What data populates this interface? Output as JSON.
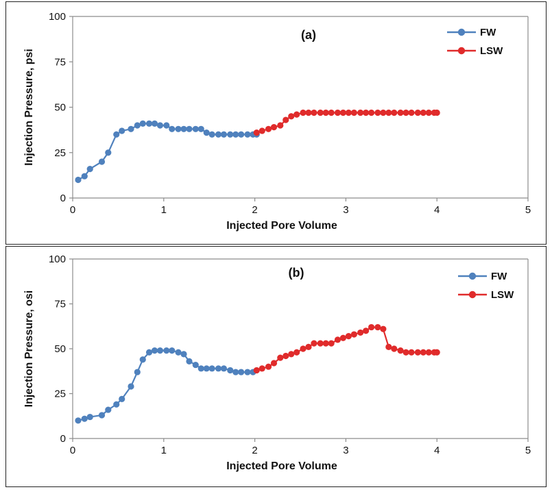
{
  "colors": {
    "fw": "#4f81bd",
    "lsw": "#e02b2b",
    "axis": "#8c8c8c",
    "frame": "#222222"
  },
  "chart_data": [
    {
      "type": "line",
      "panel_label": "(a)",
      "xlabel": "Injected Pore Volume",
      "ylabel": "Injection Pressure, psi",
      "xlim": [
        0,
        5
      ],
      "ylim": [
        0,
        100
      ],
      "xticks": [
        0,
        1,
        2,
        3,
        4,
        5
      ],
      "yticks": [
        0,
        25,
        50,
        75,
        100
      ],
      "grid": false,
      "legend_position": "top-right",
      "series": [
        {
          "name": "FW",
          "color": "#4f81bd",
          "x": [
            0.06,
            0.13,
            0.19,
            0.32,
            0.39,
            0.48,
            0.54,
            0.64,
            0.71,
            0.77,
            0.84,
            0.9,
            0.96,
            1.03,
            1.09,
            1.16,
            1.22,
            1.28,
            1.35,
            1.41,
            1.47,
            1.53,
            1.6,
            1.66,
            1.73,
            1.79,
            1.85,
            1.92,
            1.98,
            2.02
          ],
          "y": [
            10,
            12,
            16,
            20,
            25,
            35,
            37,
            38,
            40,
            41,
            41,
            41,
            40,
            40,
            38,
            38,
            38,
            38,
            38,
            38,
            36,
            35,
            35,
            35,
            35,
            35,
            35,
            35,
            35,
            35
          ]
        },
        {
          "name": "LSW",
          "color": "#e02b2b",
          "x": [
            2.02,
            2.08,
            2.15,
            2.21,
            2.28,
            2.34,
            2.4,
            2.46,
            2.53,
            2.59,
            2.65,
            2.72,
            2.78,
            2.84,
            2.91,
            2.97,
            3.03,
            3.09,
            3.16,
            3.22,
            3.28,
            3.35,
            3.41,
            3.47,
            3.53,
            3.6,
            3.66,
            3.72,
            3.79,
            3.85,
            3.91,
            3.97,
            4.0
          ],
          "y": [
            36,
            37,
            38,
            39,
            40,
            43,
            45,
            46,
            47,
            47,
            47,
            47,
            47,
            47,
            47,
            47,
            47,
            47,
            47,
            47,
            47,
            47,
            47,
            47,
            47,
            47,
            47,
            47,
            47,
            47,
            47,
            47,
            47
          ]
        }
      ]
    },
    {
      "type": "line",
      "panel_label": "(b)",
      "xlabel": "Injected Pore Volume",
      "ylabel": "Injection Pressure, osi",
      "xlim": [
        0,
        5
      ],
      "ylim": [
        0,
        100
      ],
      "xticks": [
        0,
        1,
        2,
        3,
        4,
        5
      ],
      "yticks": [
        0,
        25,
        50,
        75,
        100
      ],
      "grid": false,
      "legend_position": "top-right",
      "series": [
        {
          "name": "FW",
          "color": "#4f81bd",
          "x": [
            0.06,
            0.13,
            0.19,
            0.32,
            0.39,
            0.48,
            0.54,
            0.64,
            0.71,
            0.77,
            0.84,
            0.9,
            0.96,
            1.03,
            1.09,
            1.16,
            1.22,
            1.28,
            1.35,
            1.41,
            1.47,
            1.53,
            1.6,
            1.66,
            1.73,
            1.79,
            1.85,
            1.92,
            1.98
          ],
          "y": [
            10,
            11,
            12,
            13,
            16,
            19,
            22,
            29,
            37,
            44,
            48,
            49,
            49,
            49,
            49,
            48,
            47,
            43,
            41,
            39,
            39,
            39,
            39,
            39,
            38,
            37,
            37,
            37,
            37
          ]
        },
        {
          "name": "LSW",
          "color": "#e02b2b",
          "x": [
            2.02,
            2.08,
            2.15,
            2.21,
            2.28,
            2.34,
            2.4,
            2.46,
            2.53,
            2.59,
            2.65,
            2.72,
            2.78,
            2.84,
            2.91,
            2.97,
            3.03,
            3.09,
            3.16,
            3.22,
            3.28,
            3.35,
            3.41,
            3.47,
            3.53,
            3.6,
            3.66,
            3.72,
            3.79,
            3.85,
            3.91,
            3.97,
            4.0
          ],
          "y": [
            38,
            39,
            40,
            42,
            45,
            46,
            47,
            48,
            50,
            51,
            53,
            53,
            53,
            53,
            55,
            56,
            57,
            58,
            59,
            60,
            62,
            62,
            61,
            51,
            50,
            49,
            48,
            48,
            48,
            48,
            48,
            48,
            48
          ]
        }
      ]
    }
  ]
}
